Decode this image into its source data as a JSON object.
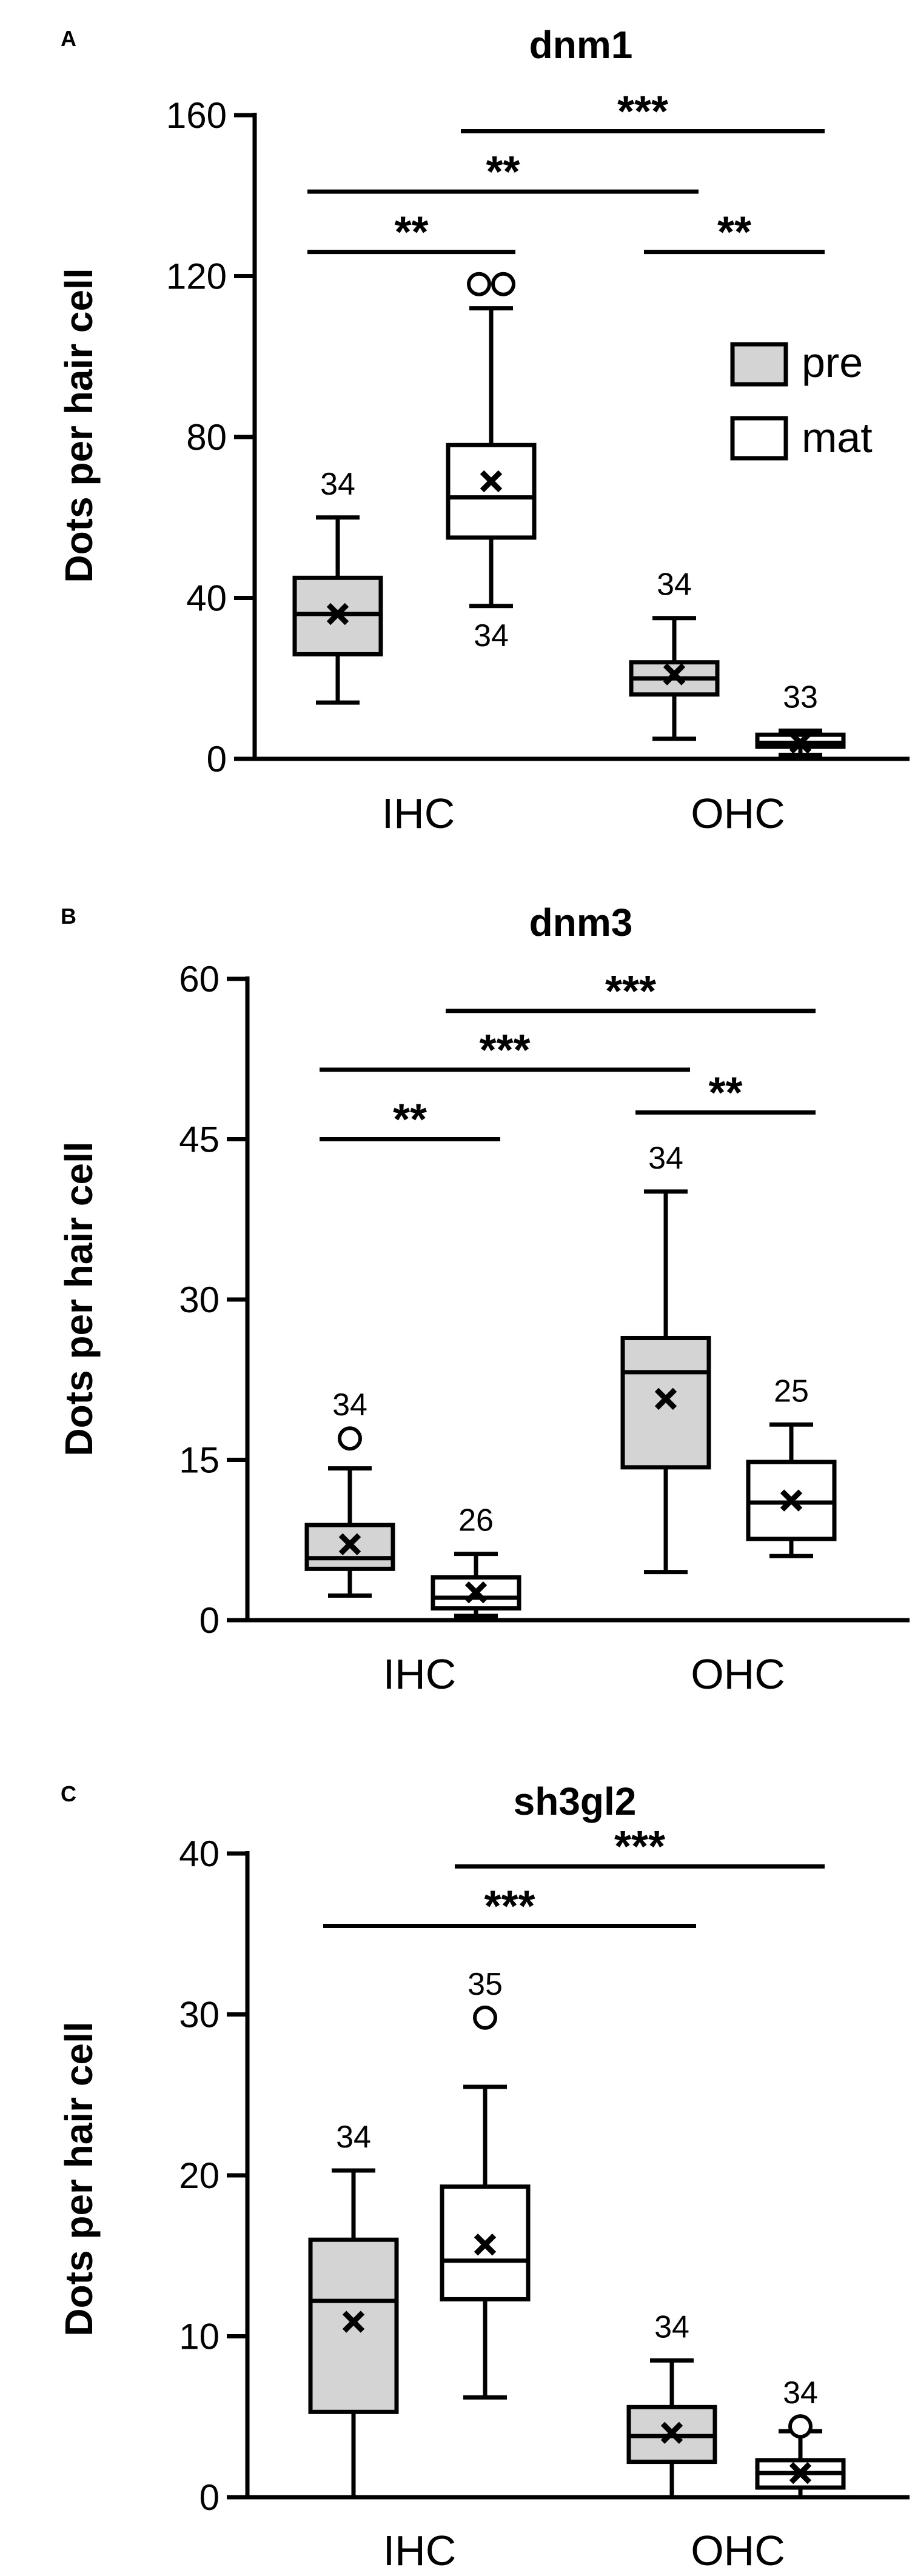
{
  "legend": {
    "items": [
      {
        "label": "pre",
        "color": "#d4d4d4"
      },
      {
        "label": "mat",
        "color": "#ffffff"
      }
    ]
  },
  "chart_data": [
    {
      "panel": "A",
      "type": "box",
      "title": "dnm1",
      "ylabel": "Dots per hair cell",
      "xlabel": "",
      "ylim": [
        0,
        160
      ],
      "yticks": [
        0,
        40,
        80,
        120,
        160
      ],
      "categories": [
        "IHC",
        "OHC"
      ],
      "series": [
        {
          "name": "pre",
          "color": "#d4d4d4"
        },
        {
          "name": "mat",
          "color": "#ffffff"
        }
      ],
      "boxes": [
        {
          "category": "IHC",
          "series": "pre",
          "min": 14,
          "q1": 26,
          "median": 36,
          "q3": 45,
          "max": 60,
          "mean": 36,
          "outliers": [],
          "n": "34",
          "n_pos": "above"
        },
        {
          "category": "IHC",
          "series": "mat",
          "min": 38,
          "q1": 55,
          "median": 65,
          "q3": 78,
          "max": 112,
          "mean": 69,
          "outliers": [
            118,
            118
          ],
          "n": "34",
          "n_pos": "below"
        },
        {
          "category": "OHC",
          "series": "pre",
          "min": 5,
          "q1": 16,
          "median": 20,
          "q3": 24,
          "max": 35,
          "mean": 21,
          "outliers": [],
          "n": "34",
          "n_pos": "above"
        },
        {
          "category": "OHC",
          "series": "mat",
          "min": 1,
          "q1": 3,
          "median": 4,
          "q3": 6,
          "max": 7,
          "mean": 4,
          "outliers": [],
          "n": "33",
          "n_pos": "above"
        }
      ],
      "significance": [
        {
          "label": "**",
          "y": 126,
          "from": "IHC-pre",
          "to": "IHC-mat"
        },
        {
          "label": "**",
          "y": 141,
          "from": "IHC-pre",
          "to": "OHC-pre"
        },
        {
          "label": "***",
          "y": 156,
          "from": "IHC-mat",
          "to": "OHC-mat"
        },
        {
          "label": "**",
          "y": 126,
          "from": "OHC-pre",
          "to": "OHC-mat"
        }
      ]
    },
    {
      "panel": "B",
      "type": "box",
      "title": "dnm3",
      "ylabel": "Dots per hair cell",
      "xlabel": "",
      "ylim": [
        0,
        60
      ],
      "yticks": [
        0,
        15,
        30,
        45,
        60
      ],
      "categories": [
        "IHC",
        "OHC"
      ],
      "series": [
        {
          "name": "pre",
          "color": "#d4d4d4"
        },
        {
          "name": "mat",
          "color": "#ffffff"
        }
      ],
      "boxes": [
        {
          "category": "IHC",
          "series": "pre",
          "min": 2.3,
          "q1": 4.8,
          "median": 5.8,
          "q3": 8.9,
          "max": 14.2,
          "mean": 7.1,
          "outliers": [
            17
          ],
          "n": "34",
          "n_pos": "above"
        },
        {
          "category": "IHC",
          "series": "mat",
          "min": 0.4,
          "q1": 1.1,
          "median": 2.1,
          "q3": 4.0,
          "max": 6.2,
          "mean": 2.6,
          "outliers": [],
          "n": "26",
          "n_pos": "above"
        },
        {
          "category": "OHC",
          "series": "pre",
          "min": 4.5,
          "q1": 14.3,
          "median": 23.2,
          "q3": 26.4,
          "max": 40.1,
          "mean": 20.7,
          "outliers": [],
          "n": "34",
          "n_pos": "above"
        },
        {
          "category": "OHC",
          "series": "mat",
          "min": 6.0,
          "q1": 7.6,
          "median": 11.0,
          "q3": 14.8,
          "max": 18.3,
          "mean": 11.2,
          "outliers": [],
          "n": "25",
          "n_pos": "above"
        }
      ],
      "significance": [
        {
          "label": "**",
          "y": 45,
          "from": "IHC-pre",
          "to": "IHC-mat"
        },
        {
          "label": "***",
          "y": 51.5,
          "from": "IHC-pre",
          "to": "OHC-pre"
        },
        {
          "label": "***",
          "y": 57,
          "from": "IHC-mat",
          "to": "OHC-mat"
        },
        {
          "label": "**",
          "y": 47.5,
          "from": "OHC-pre",
          "to": "OHC-mat"
        }
      ]
    },
    {
      "panel": "C",
      "type": "box",
      "title": "sh3gl2",
      "ylabel": "Dots per hair cell",
      "xlabel": "",
      "ylim": [
        0,
        40
      ],
      "yticks": [
        0,
        10,
        20,
        30,
        40
      ],
      "categories": [
        "IHC",
        "OHC"
      ],
      "series": [
        {
          "name": "pre",
          "color": "#d4d4d4"
        },
        {
          "name": "mat",
          "color": "#ffffff"
        }
      ],
      "boxes": [
        {
          "category": "IHC",
          "series": "pre",
          "min": 0,
          "q1": 5.3,
          "median": 12.2,
          "q3": 16.0,
          "max": 20.3,
          "mean": 10.9,
          "outliers": [],
          "n": "34",
          "n_pos": "above"
        },
        {
          "category": "IHC",
          "series": "mat",
          "min": 6.2,
          "q1": 12.3,
          "median": 14.7,
          "q3": 19.3,
          "max": 25.5,
          "mean": 15.7,
          "outliers": [
            29.8
          ],
          "n": "35",
          "n_pos": "above"
        },
        {
          "category": "OHC",
          "series": "pre",
          "min": 0,
          "q1": 2.2,
          "median": 3.8,
          "q3": 5.6,
          "max": 8.5,
          "mean": 4.0,
          "outliers": [],
          "n": "34",
          "n_pos": "above"
        },
        {
          "category": "OHC",
          "series": "mat",
          "min": 0,
          "q1": 0.6,
          "median": 1.5,
          "q3": 2.3,
          "max": 4.1,
          "mean": 1.5,
          "outliers": [
            4.4
          ],
          "n": "34",
          "n_pos": "above"
        }
      ],
      "significance": [
        {
          "label": "***",
          "y": 35.5,
          "from": "IHC-pre",
          "to": "OHC-pre"
        },
        {
          "label": "***",
          "y": 39.2,
          "from": "IHC-mat",
          "to": "OHC-mat"
        }
      ]
    }
  ]
}
